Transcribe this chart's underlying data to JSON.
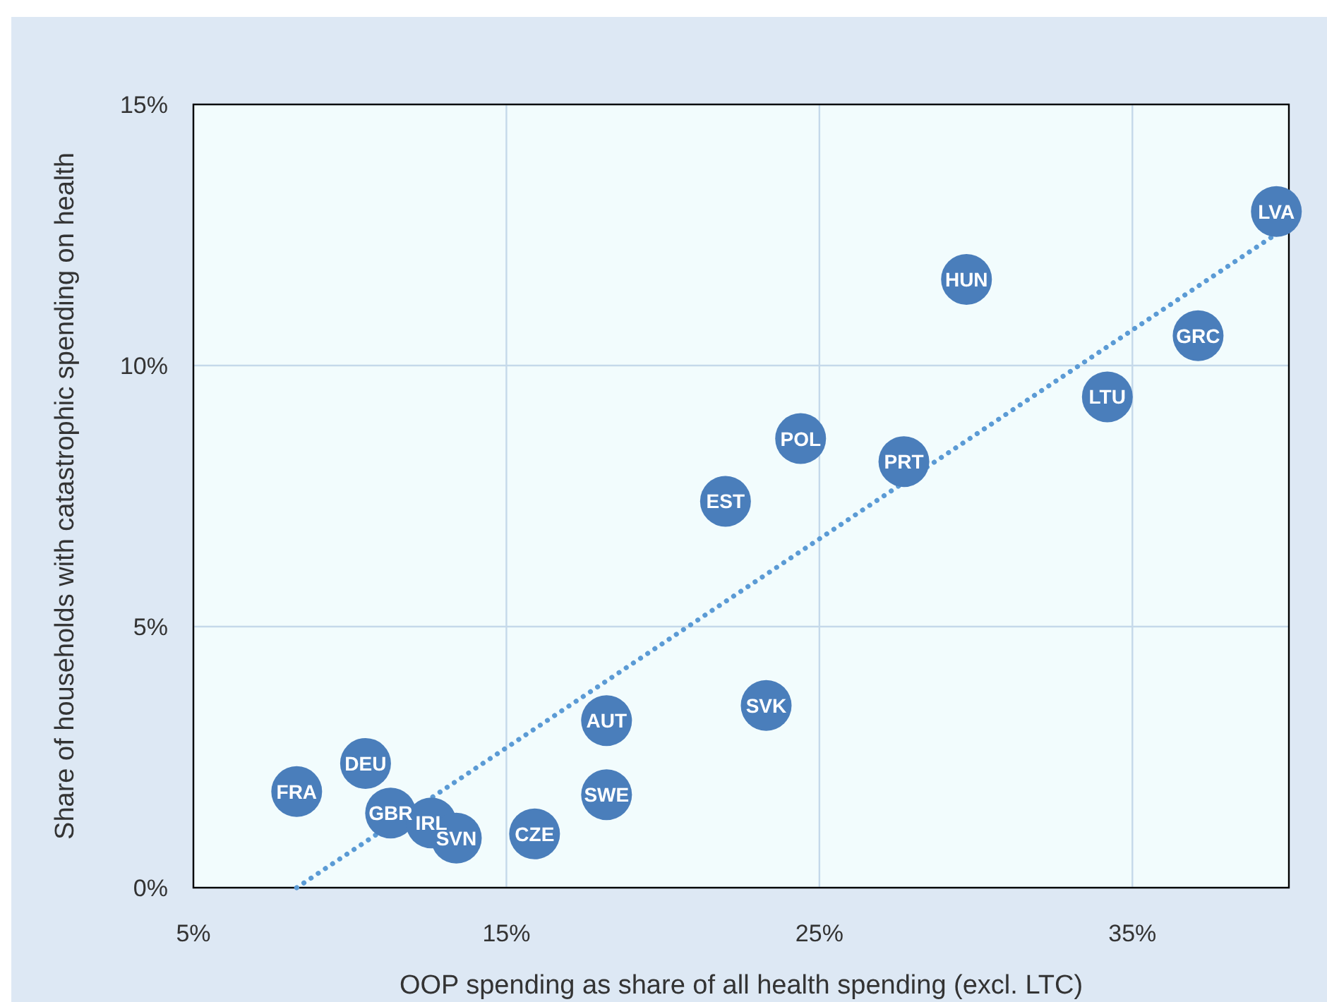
{
  "chart_data": {
    "type": "scatter",
    "xlabel": "OOP spending as share of all health spending (excl. LTC)",
    "ylabel": "Share of households with catastrophic spending on health",
    "xlim": [
      5,
      40
    ],
    "ylim": [
      0,
      15
    ],
    "xticks": [
      {
        "value": 5,
        "label": "5%"
      },
      {
        "value": 15,
        "label": "15%"
      },
      {
        "value": 25,
        "label": "25%"
      },
      {
        "value": 35,
        "label": "35%"
      }
    ],
    "yticks": [
      {
        "value": 0,
        "label": "0%"
      },
      {
        "value": 5,
        "label": "5%"
      },
      {
        "value": 10,
        "label": "10%"
      },
      {
        "value": 15,
        "label": "15%"
      }
    ],
    "grid": true,
    "series": [
      {
        "marker": "circle",
        "color": "#4a7ebb",
        "x": [
          8.3,
          10.5,
          11.3,
          12.6,
          13.4,
          15.9,
          18.2,
          18.2,
          22.0,
          23.3,
          24.4,
          27.7,
          29.7,
          34.2,
          37.1,
          39.6
        ],
        "values": [
          1.84,
          2.38,
          1.43,
          1.24,
          0.95,
          1.03,
          3.2,
          1.78,
          7.4,
          3.49,
          8.6,
          8.16,
          11.65,
          9.4,
          10.57,
          12.95
        ]
      },
      {
        "type": "line",
        "color": "#5b9bd5",
        "line_style": "dotted",
        "x": [
          8.3,
          39.8
        ],
        "values": [
          0,
          12.6
        ]
      }
    ],
    "annotations": [
      {
        "text": "FRA",
        "x": 8.3,
        "y": 1.84
      },
      {
        "text": "DEU",
        "x": 10.5,
        "y": 2.38
      },
      {
        "text": "GBR",
        "x": 11.3,
        "y": 1.43
      },
      {
        "text": "IRL",
        "x": 12.6,
        "y": 1.24
      },
      {
        "text": "SVN",
        "x": 13.4,
        "y": 0.95
      },
      {
        "text": "CZE",
        "x": 15.9,
        "y": 1.03
      },
      {
        "text": "AUT",
        "x": 18.2,
        "y": 3.2
      },
      {
        "text": "SWE",
        "x": 18.2,
        "y": 1.78
      },
      {
        "text": "EST",
        "x": 22.0,
        "y": 7.4
      },
      {
        "text": "SVK",
        "x": 23.3,
        "y": 3.49
      },
      {
        "text": "POL",
        "x": 24.4,
        "y": 8.6
      },
      {
        "text": "PRT",
        "x": 27.7,
        "y": 8.16
      },
      {
        "text": "HUN",
        "x": 29.7,
        "y": 11.65
      },
      {
        "text": "LTU",
        "x": 34.2,
        "y": 9.4
      },
      {
        "text": "GRC",
        "x": 37.1,
        "y": 10.57
      },
      {
        "text": "LVA",
        "x": 39.6,
        "y": 12.95
      }
    ]
  }
}
